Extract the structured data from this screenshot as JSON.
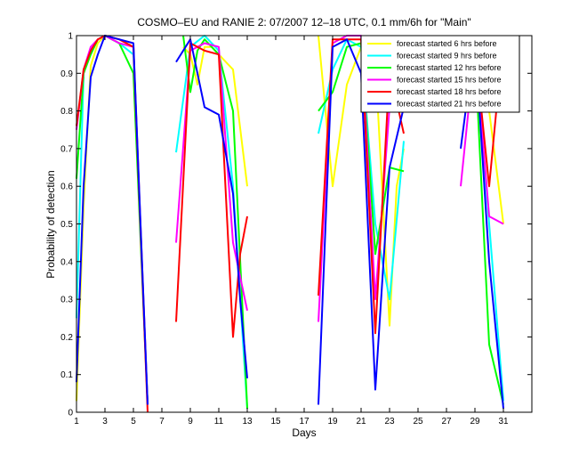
{
  "chart_data": {
    "type": "line",
    "title": "COSMO–EU and RANIE 2: 07/2007 12–18 UTC, 0.1 mm/6h for \"Main\"",
    "xlabel": "Days",
    "ylabel": "Probability of detection",
    "xlim": [
      1,
      33
    ],
    "ylim": [
      0,
      1
    ],
    "xticks": [
      1,
      3,
      5,
      7,
      9,
      11,
      13,
      15,
      17,
      19,
      21,
      23,
      25,
      27,
      29,
      31
    ],
    "yticks": [
      0,
      0.1,
      0.2,
      0.3,
      0.4,
      0.5,
      0.6,
      0.7,
      0.8,
      0.9,
      1
    ],
    "ytick_labels": [
      "0",
      "0.1",
      "0.2",
      "0.3",
      "0.4",
      "0.5",
      "0.6",
      "0.7",
      "0.8",
      "0.9",
      "1"
    ],
    "grid": false,
    "legend_position": "top-right",
    "series": [
      {
        "name": "forecast started 6 hrs before",
        "color": "#ffff00",
        "segments": [
          [
            [
              1,
              0.03
            ],
            [
              1.5,
              0.55
            ],
            [
              2,
              0.92
            ],
            [
              2.5,
              0.98
            ],
            [
              3,
              1.0
            ],
            [
              4,
              0.99
            ],
            [
              5,
              0.97
            ],
            [
              6,
              0.02
            ]
          ],
          [
            [
              8.5,
              0.97
            ],
            [
              9,
              0.95
            ],
            [
              9.5,
              0.87
            ],
            [
              10,
              0.97
            ],
            [
              10.5,
              0.97
            ],
            [
              11,
              0.95
            ],
            [
              12,
              0.91
            ],
            [
              13,
              0.6
            ]
          ],
          [
            [
              18,
              1.0
            ],
            [
              19,
              0.6
            ],
            [
              20,
              0.87
            ],
            [
              21,
              0.97
            ],
            [
              22,
              0.93
            ],
            [
              23,
              0.23
            ],
            [
              23.5,
              0.6
            ],
            [
              24,
              0.7
            ]
          ],
          [
            [
              28,
              0.95
            ],
            [
              29,
              0.98
            ],
            [
              30,
              0.8
            ],
            [
              31,
              0.5
            ]
          ]
        ]
      },
      {
        "name": "forecast started 9 hrs before",
        "color": "#00ffff",
        "segments": [
          [
            [
              1,
              0.25
            ],
            [
              1.5,
              0.9
            ],
            [
              2,
              0.96
            ],
            [
              2.5,
              0.99
            ],
            [
              3,
              1.0
            ],
            [
              4,
              0.98
            ],
            [
              5,
              0.95
            ],
            [
              6,
              0.02
            ]
          ],
          [
            [
              8,
              0.69
            ],
            [
              9,
              0.97
            ],
            [
              10,
              1.0
            ],
            [
              11,
              0.96
            ],
            [
              12,
              0.6
            ],
            [
              13,
              0.01
            ]
          ],
          [
            [
              18,
              0.74
            ],
            [
              19,
              0.91
            ],
            [
              20,
              0.99
            ],
            [
              21,
              0.97
            ],
            [
              22,
              0.5
            ],
            [
              23,
              0.3
            ],
            [
              24,
              0.72
            ]
          ],
          [
            [
              28,
              0.96
            ],
            [
              29,
              0.98
            ],
            [
              30,
              0.5
            ],
            [
              31,
              0.03
            ]
          ]
        ]
      },
      {
        "name": "forecast started 12 hrs before",
        "color": "#00ff00",
        "segments": [
          [
            [
              1,
              0.62
            ],
            [
              1.5,
              0.9
            ],
            [
              2,
              0.95
            ],
            [
              2.5,
              0.99
            ],
            [
              3,
              1.0
            ],
            [
              4,
              0.98
            ],
            [
              5,
              0.9
            ],
            [
              6,
              0.02
            ]
          ],
          [
            [
              8.5,
              1.0
            ],
            [
              9,
              0.85
            ],
            [
              9.5,
              0.96
            ],
            [
              10,
              0.99
            ],
            [
              11,
              0.95
            ],
            [
              12,
              0.8
            ],
            [
              13,
              0.01
            ]
          ],
          [
            [
              18,
              0.8
            ],
            [
              19,
              0.85
            ],
            [
              20,
              0.97
            ],
            [
              21,
              0.98
            ],
            [
              22,
              0.42
            ],
            [
              23,
              0.65
            ],
            [
              24,
              0.64
            ]
          ],
          [
            [
              28,
              0.93
            ],
            [
              29,
              0.96
            ],
            [
              30,
              0.18
            ],
            [
              31,
              0.02
            ]
          ]
        ]
      },
      {
        "name": "forecast started 15 hrs before",
        "color": "#ff00ff",
        "segments": [
          [
            [
              1,
              0.75
            ],
            [
              1.5,
              0.91
            ],
            [
              2,
              0.97
            ],
            [
              2.5,
              0.99
            ],
            [
              3,
              1.0
            ],
            [
              4,
              0.98
            ],
            [
              5,
              0.97
            ],
            [
              6,
              0.02
            ]
          ],
          [
            [
              8,
              0.45
            ],
            [
              9,
              0.96
            ],
            [
              10,
              0.98
            ],
            [
              11,
              0.97
            ],
            [
              12,
              0.45
            ],
            [
              13,
              0.27
            ]
          ],
          [
            [
              18,
              0.24
            ],
            [
              19,
              0.98
            ],
            [
              20,
              1.0
            ],
            [
              21,
              1.0
            ],
            [
              22,
              0.3
            ],
            [
              23,
              0.81
            ],
            [
              24,
              0.83
            ]
          ],
          [
            [
              28,
              0.6
            ],
            [
              29,
              0.97
            ],
            [
              30,
              0.52
            ],
            [
              31,
              0.5
            ]
          ]
        ]
      },
      {
        "name": "forecast started 18 hrs before",
        "color": "#ff0000",
        "segments": [
          [
            [
              1,
              0.76
            ],
            [
              1.5,
              0.91
            ],
            [
              2,
              0.96
            ],
            [
              2.5,
              0.99
            ],
            [
              3,
              1.0
            ],
            [
              4,
              0.99
            ],
            [
              5,
              0.97
            ],
            [
              6,
              0.0
            ]
          ],
          [
            [
              8,
              0.24
            ],
            [
              9,
              0.98
            ],
            [
              10,
              0.96
            ],
            [
              11,
              0.95
            ],
            [
              12,
              0.2
            ],
            [
              12.5,
              0.42
            ],
            [
              13,
              0.52
            ]
          ],
          [
            [
              18,
              0.31
            ],
            [
              19,
              0.99
            ],
            [
              20,
              0.99
            ],
            [
              21,
              0.99
            ],
            [
              22,
              0.21
            ],
            [
              23,
              0.91
            ],
            [
              24,
              0.74
            ]
          ],
          [
            [
              28,
              0.89
            ],
            [
              29,
              0.97
            ],
            [
              30,
              0.6
            ],
            [
              31,
              1.0
            ]
          ]
        ]
      },
      {
        "name": "forecast started 21 hrs before",
        "color": "#0000ff",
        "segments": [
          [
            [
              1,
              0.08
            ],
            [
              1.5,
              0.6
            ],
            [
              2,
              0.89
            ],
            [
              2.5,
              0.95
            ],
            [
              3,
              1.0
            ],
            [
              4,
              0.99
            ],
            [
              5,
              0.98
            ],
            [
              6,
              0.02
            ]
          ],
          [
            [
              8,
              0.93
            ],
            [
              9,
              0.99
            ],
            [
              10,
              0.81
            ],
            [
              11,
              0.79
            ],
            [
              12,
              0.58
            ],
            [
              12.5,
              0.3
            ],
            [
              13,
              0.09
            ]
          ],
          [
            [
              18,
              0.02
            ],
            [
              19,
              0.97
            ],
            [
              20,
              0.99
            ],
            [
              21,
              0.9
            ],
            [
              22,
              0.06
            ],
            [
              23,
              0.65
            ],
            [
              24,
              0.81
            ]
          ],
          [
            [
              28,
              0.7
            ],
            [
              29,
              0.99
            ],
            [
              30,
              0.4
            ],
            [
              31,
              0.01
            ]
          ]
        ]
      }
    ]
  }
}
